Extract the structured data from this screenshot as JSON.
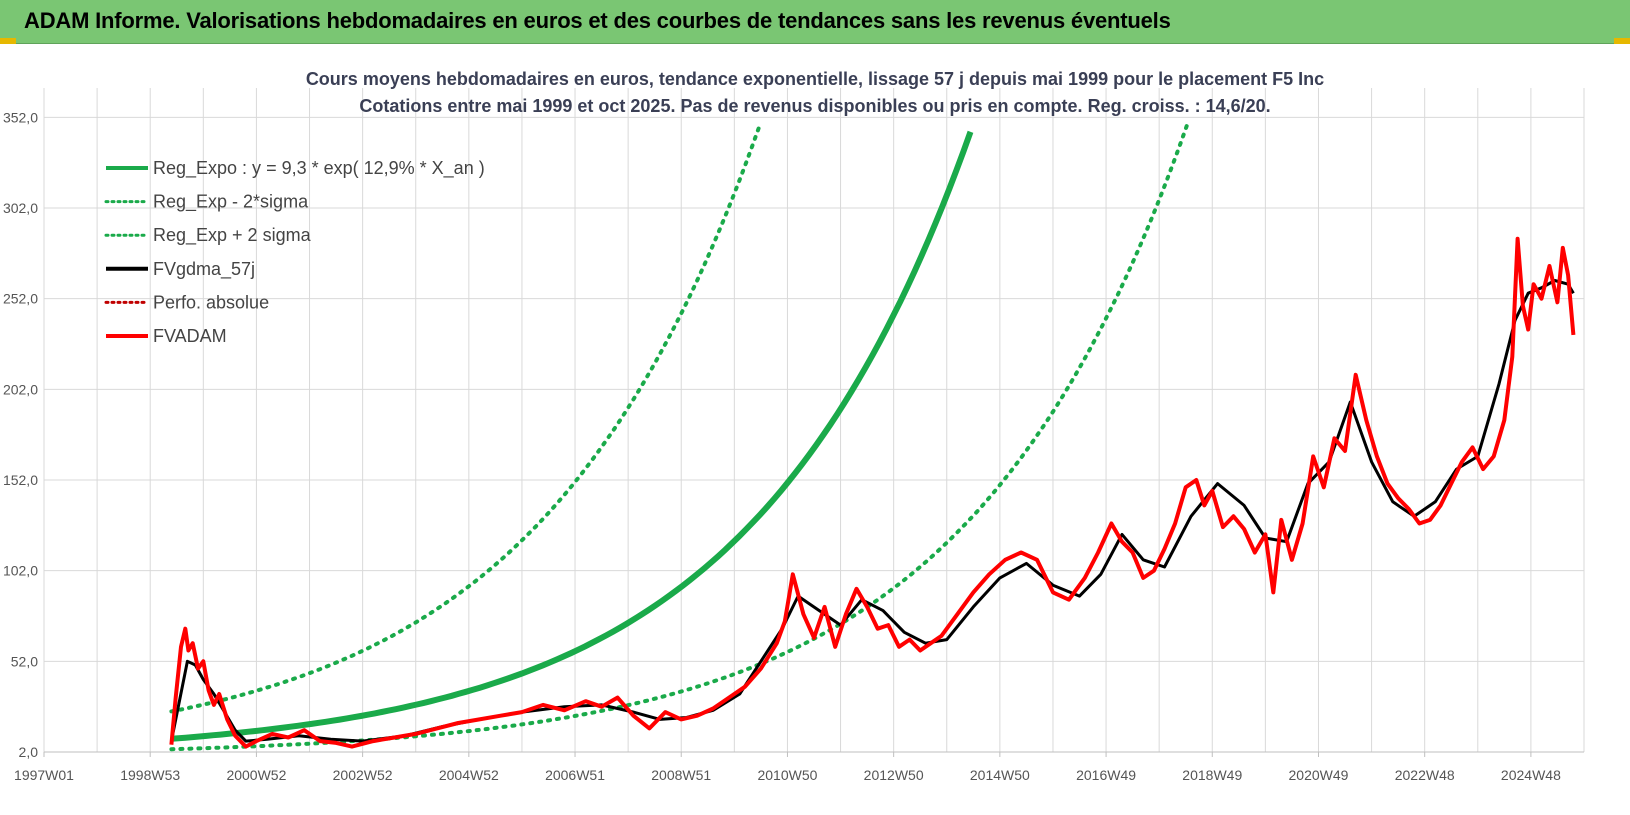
{
  "header": {
    "title": "ADAM Informe. Valorisations hebdomadaires en euros et des courbes de tendances sans les revenus éventuels"
  },
  "colors": {
    "header_bg": "#7ac673",
    "trend": "#1aaa4a",
    "fv": "#ff0000",
    "smooth": "#000000",
    "grid": "#d9d9d9"
  },
  "chart_data": {
    "type": "line",
    "title": "Cours moyens hebdomadaires en euros, tendance exponentielle, lissage 57 j depuis mai 1999 pour le placement F5 Inc",
    "subtitle": "Cotations entre mai 1999 et oct 2025. Pas de revenus disponibles ou pris en compte. Reg. croiss. : 14,6/20.",
    "xlabel": "",
    "ylabel": "",
    "x_tick_labels": [
      "1997W01",
      "1998W53",
      "2000W52",
      "2002W52",
      "2004W52",
      "2006W51",
      "2008W51",
      "2010W50",
      "2012W50",
      "2014W50",
      "2016W49",
      "2018W49",
      "2020W49",
      "2022W48",
      "2024W48"
    ],
    "x_ticks_year": [
      1997.0,
      1999.0,
      2001.0,
      2003.0,
      2005.0,
      2007.0,
      2009.0,
      2011.0,
      2013.0,
      2015.0,
      2017.0,
      2019.0,
      2021.0,
      2023.0,
      2025.0
    ],
    "xlim": [
      1997.0,
      2026.0
    ],
    "y_tick_labels": [
      "2,0",
      "52,0",
      "102,0",
      "152,0",
      "202,0",
      "252,0",
      "302,0",
      "352,0"
    ],
    "y_ticks": [
      2,
      52,
      102,
      152,
      202,
      252,
      302,
      352
    ],
    "ylim": [
      2,
      377
    ],
    "legend": {
      "position": "top-left",
      "entries": [
        {
          "label": "Reg_Expo : y = 9,3 * exp( 12,9% *  X_an )",
          "style": "solid",
          "color": "#1aaa4a"
        },
        {
          "label": "Reg_Exp - 2*sigma",
          "style": "dotted",
          "color": "#1aaa4a"
        },
        {
          "label": "Reg_Exp + 2 sigma",
          "style": "dotted",
          "color": "#1aaa4a"
        },
        {
          "label": "FVgdma_57j",
          "style": "solid",
          "color": "#000000"
        },
        {
          "label": "Perfo. absolue",
          "style": "dotted",
          "color": "#c00000"
        },
        {
          "label": "FVADAM",
          "style": "solid",
          "color": "#ff0000"
        }
      ]
    },
    "regression": {
      "a": 9.3,
      "rate": 0.129,
      "x0_year": 1999.4,
      "x_end_year": 2025.8,
      "lower_factor": 0.38,
      "upper_factor": 2.62
    },
    "series": [
      {
        "name": "FVADAM",
        "x": [
          1999.4,
          1999.48,
          1999.58,
          1999.66,
          1999.72,
          1999.8,
          1999.9,
          2000.0,
          2000.1,
          2000.2,
          2000.3,
          2000.45,
          2000.6,
          2000.8,
          2001.0,
          2001.3,
          2001.6,
          2001.9,
          2002.2,
          2002.5,
          2002.8,
          2003.2,
          2003.6,
          2004.0,
          2004.4,
          2004.8,
          2005.2,
          2005.6,
          2006.0,
          2006.4,
          2006.8,
          2007.2,
          2007.5,
          2007.8,
          2008.1,
          2008.4,
          2008.7,
          2009.0,
          2009.3,
          2009.6,
          2009.9,
          2010.2,
          2010.5,
          2010.8,
          2010.95,
          2011.1,
          2011.3,
          2011.5,
          2011.7,
          2011.9,
          2012.1,
          2012.3,
          2012.5,
          2012.7,
          2012.9,
          2013.1,
          2013.3,
          2013.5,
          2013.7,
          2013.9,
          2014.2,
          2014.5,
          2014.8,
          2015.1,
          2015.4,
          2015.7,
          2016.0,
          2016.3,
          2016.6,
          2016.85,
          2017.1,
          2017.3,
          2017.5,
          2017.7,
          2017.9,
          2018.1,
          2018.3,
          2018.5,
          2018.7,
          2018.85,
          2019.0,
          2019.2,
          2019.4,
          2019.6,
          2019.8,
          2020.0,
          2020.15,
          2020.3,
          2020.5,
          2020.7,
          2020.9,
          2021.1,
          2021.3,
          2021.5,
          2021.7,
          2021.9,
          2022.0,
          2022.1,
          2022.3,
          2022.5,
          2022.7,
          2022.9,
          2023.1,
          2023.3,
          2023.5,
          2023.7,
          2023.9,
          2024.1,
          2024.3,
          2024.5,
          2024.65,
          2024.75,
          2024.85,
          2024.95,
          2025.05,
          2025.2,
          2025.35,
          2025.5,
          2025.6,
          2025.7,
          2025.8
        ],
        "values": [
          6,
          32,
          60,
          70,
          58,
          62,
          48,
          52,
          36,
          28,
          34,
          20,
          11,
          5,
          8,
          12,
          10,
          14,
          8,
          7,
          5,
          8,
          10,
          12,
          15,
          18,
          20,
          22,
          24,
          28,
          25,
          30,
          27,
          32,
          22,
          15,
          24,
          20,
          22,
          26,
          32,
          38,
          48,
          62,
          74,
          100,
          78,
          65,
          82,
          60,
          78,
          92,
          82,
          70,
          72,
          60,
          64,
          58,
          62,
          66,
          78,
          90,
          100,
          108,
          112,
          108,
          90,
          86,
          98,
          112,
          128,
          118,
          112,
          98,
          102,
          114,
          128,
          148,
          152,
          138,
          146,
          126,
          132,
          125,
          112,
          122,
          90,
          130,
          108,
          128,
          165,
          148,
          175,
          168,
          210,
          185,
          175,
          165,
          150,
          142,
          136,
          128,
          130,
          138,
          150,
          162,
          170,
          158,
          165,
          185,
          220,
          285,
          248,
          235,
          260,
          252,
          270,
          250,
          280,
          265,
          232
        ]
      },
      {
        "name": "FVgdma_57j",
        "x": [
          1999.4,
          1999.55,
          1999.7,
          1999.85,
          2000.0,
          2000.2,
          2000.4,
          2000.6,
          2000.8,
          2001.2,
          2001.8,
          2002.4,
          2003.0,
          2003.8,
          2004.5,
          2005.2,
          2006.0,
          2006.8,
          2007.5,
          2008.1,
          2008.6,
          2009.1,
          2009.6,
          2010.1,
          2010.5,
          2010.9,
          2011.2,
          2011.6,
          2012.0,
          2012.4,
          2012.8,
          2013.2,
          2013.6,
          2014.0,
          2014.5,
          2015.0,
          2015.5,
          2016.0,
          2016.5,
          2016.9,
          2017.3,
          2017.7,
          2018.1,
          2018.6,
          2019.1,
          2019.6,
          2020.0,
          2020.4,
          2020.8,
          2021.2,
          2021.6,
          2022.0,
          2022.4,
          2022.8,
          2023.2,
          2023.6,
          2024.0,
          2024.4,
          2024.7,
          2024.95,
          2025.2,
          2025.45,
          2025.7,
          2025.8
        ],
        "values": [
          8,
          30,
          52,
          50,
          42,
          34,
          24,
          14,
          8,
          9,
          11,
          9,
          8,
          11,
          16,
          20,
          24,
          27,
          28,
          24,
          20,
          21,
          25,
          34,
          52,
          70,
          88,
          80,
          72,
          86,
          80,
          68,
          62,
          64,
          82,
          98,
          106,
          94,
          88,
          100,
          122,
          108,
          104,
          132,
          150,
          138,
          120,
          118,
          150,
          162,
          195,
          162,
          140,
          132,
          140,
          158,
          165,
          205,
          240,
          255,
          258,
          262,
          260,
          255
        ]
      }
    ]
  }
}
